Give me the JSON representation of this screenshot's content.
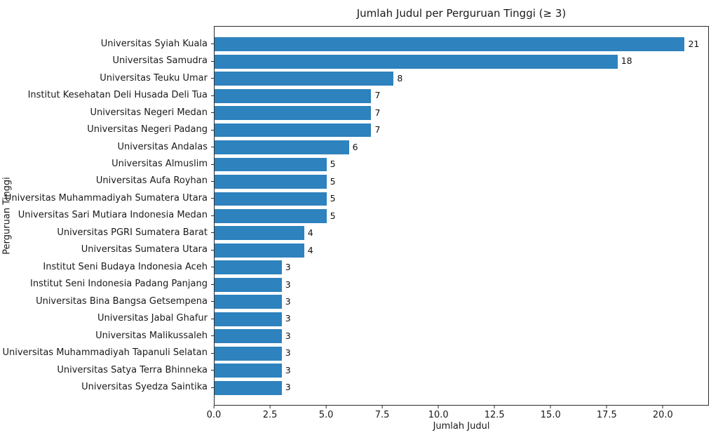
{
  "chart_data": {
    "type": "bar",
    "orientation": "horizontal",
    "title": "Jumlah Judul per Perguruan Tinggi (≥ 3)",
    "xlabel": "Jumlah Judul",
    "ylabel": "Perguruan Tinggi",
    "categories": [
      "Universitas Syiah Kuala",
      "Universitas Samudra",
      "Universitas Teuku Umar",
      "Institut Kesehatan Deli Husada Deli Tua",
      "Universitas Negeri Medan",
      "Universitas Negeri Padang",
      "Universitas Andalas",
      "Universitas Almuslim",
      "Universitas Aufa Royhan",
      "Universitas Muhammadiyah Sumatera Utara",
      "Universitas Sari Mutiara Indonesia Medan",
      "Universitas PGRI Sumatera Barat",
      "Universitas Sumatera Utara",
      "Institut Seni Budaya Indonesia Aceh",
      "Institut Seni Indonesia Padang Panjang",
      "Universitas Bina Bangsa Getsempena",
      "Universitas Jabal Ghafur",
      "Universitas Malikussaleh",
      "Universitas Muhammadiyah Tapanuli Selatan",
      "Universitas Satya Terra Bhinneka",
      "Universitas Syedza Saintika"
    ],
    "values": [
      21,
      18,
      8,
      7,
      7,
      7,
      6,
      5,
      5,
      5,
      5,
      4,
      4,
      3,
      3,
      3,
      3,
      3,
      3,
      3,
      3
    ],
    "xlim": [
      0,
      22.05
    ],
    "xticks": [
      0.0,
      2.5,
      5.0,
      7.5,
      10.0,
      12.5,
      15.0,
      17.5,
      20.0
    ],
    "xtick_labels": [
      "0.0",
      "2.5",
      "5.0",
      "7.5",
      "10.0",
      "12.5",
      "15.0",
      "17.5",
      "20.0"
    ],
    "grid": false,
    "legend_position": "none",
    "value_labels_shown": true
  },
  "colors": {
    "bar": "#2e82bd",
    "text": "#1a1a1a",
    "spine": "#2b2b2b",
    "background": "#ffffff"
  }
}
